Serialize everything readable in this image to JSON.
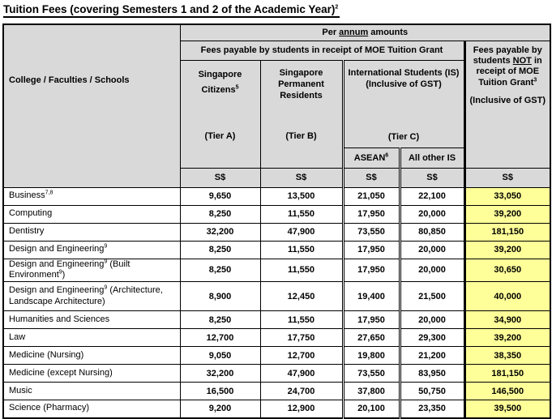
{
  "title": [
    [
      "Tuition Fees (covering Semesters 1 and 2 of the Academic Year)",
      null
    ],
    [
      "2",
      "sup"
    ]
  ],
  "header": {
    "college_col": "College / Faculties / Schools",
    "per_annum": [
      [
        "Per ",
        null
      ],
      [
        "annum",
        "u"
      ],
      [
        " amounts",
        null
      ]
    ],
    "grant_group": "Fees payable by students in receipt of MOE Tuition Grant",
    "no_grant": {
      "line1": [
        [
          "Fees payable by students ",
          null
        ],
        [
          "NOT",
          "u"
        ],
        [
          " in receipt of MOE Tuition Grant",
          null
        ],
        [
          "3",
          "sup"
        ]
      ],
      "line2": "(Inclusive of GST)"
    },
    "singapore_citizens": [
      [
        "Singapore Citizens",
        null
      ],
      [
        "5",
        "sup"
      ]
    ],
    "singapore_pr": "Singapore Permanent Residents",
    "international_students": {
      "line1": "International Students (IS)",
      "line2": "(Inclusive of GST)"
    },
    "tier_a": "(Tier A)",
    "tier_b": "(Tier B)",
    "tier_c": "(Tier C)",
    "asean": [
      [
        "ASEAN",
        null
      ],
      [
        "6",
        "sup"
      ]
    ],
    "all_other_is": "All other IS",
    "currency": "S$"
  },
  "rows": [
    {
      "label": [
        [
          "Business",
          null
        ],
        [
          "7,8",
          "sup"
        ]
      ],
      "values": [
        "9,650",
        "13,500",
        "21,050",
        "22,100",
        "33,050"
      ]
    },
    {
      "label": "Computing",
      "values": [
        "8,250",
        "11,550",
        "17,950",
        "20,000",
        "39,200"
      ]
    },
    {
      "label": "Dentistry",
      "values": [
        "32,200",
        "47,900",
        "73,550",
        "80,850",
        "181,150"
      ]
    },
    {
      "label": [
        [
          "Design and Engineering",
          null
        ],
        [
          "9",
          "sup"
        ]
      ],
      "values": [
        "8,250",
        "11,550",
        "17,950",
        "20,000",
        "39,200"
      ]
    },
    {
      "label": [
        [
          "Design and Engineering",
          null
        ],
        [
          "9",
          "sup"
        ],
        [
          " (Built Environment",
          null
        ],
        [
          "9",
          "sup"
        ],
        [
          ")",
          null
        ]
      ],
      "values": [
        "8,250",
        "11,550",
        "17,950",
        "20,000",
        "30,650"
      ]
    },
    {
      "label": [
        [
          "Design and Engineering",
          null
        ],
        [
          "9",
          "sup"
        ],
        [
          " (Architecture,",
          null
        ],
        [
          "",
          "br"
        ],
        [
          "Landscape Architecture)",
          null
        ]
      ],
      "tall": true,
      "values": [
        "8,900",
        "12,450",
        "19,400",
        "21,500",
        "40,000"
      ]
    },
    {
      "label": "Humanities and Sciences",
      "values": [
        "8,250",
        "11,550",
        "17,950",
        "20,000",
        "34,900"
      ]
    },
    {
      "label": "Law",
      "values": [
        "12,700",
        "17,750",
        "27,650",
        "29,300",
        "39,200"
      ]
    },
    {
      "label": "Medicine (Nursing)",
      "values": [
        "9,050",
        "12,700",
        "19,800",
        "21,200",
        "38,350"
      ]
    },
    {
      "label": "Medicine (except Nursing)",
      "values": [
        "32,200",
        "47,900",
        "73,550",
        "83,950",
        "181,150"
      ]
    },
    {
      "label": "Music",
      "values": [
        "16,500",
        "24,700",
        "37,800",
        "50,750",
        "146,500"
      ]
    },
    {
      "label": "Science (Pharmacy)",
      "values": [
        "9,200",
        "12,900",
        "20,100",
        "23,350",
        "39,500"
      ]
    }
  ],
  "colors": {
    "header_bg": "#d9d9d9",
    "highlight_bg": "#ffff99",
    "border": "#000000"
  }
}
